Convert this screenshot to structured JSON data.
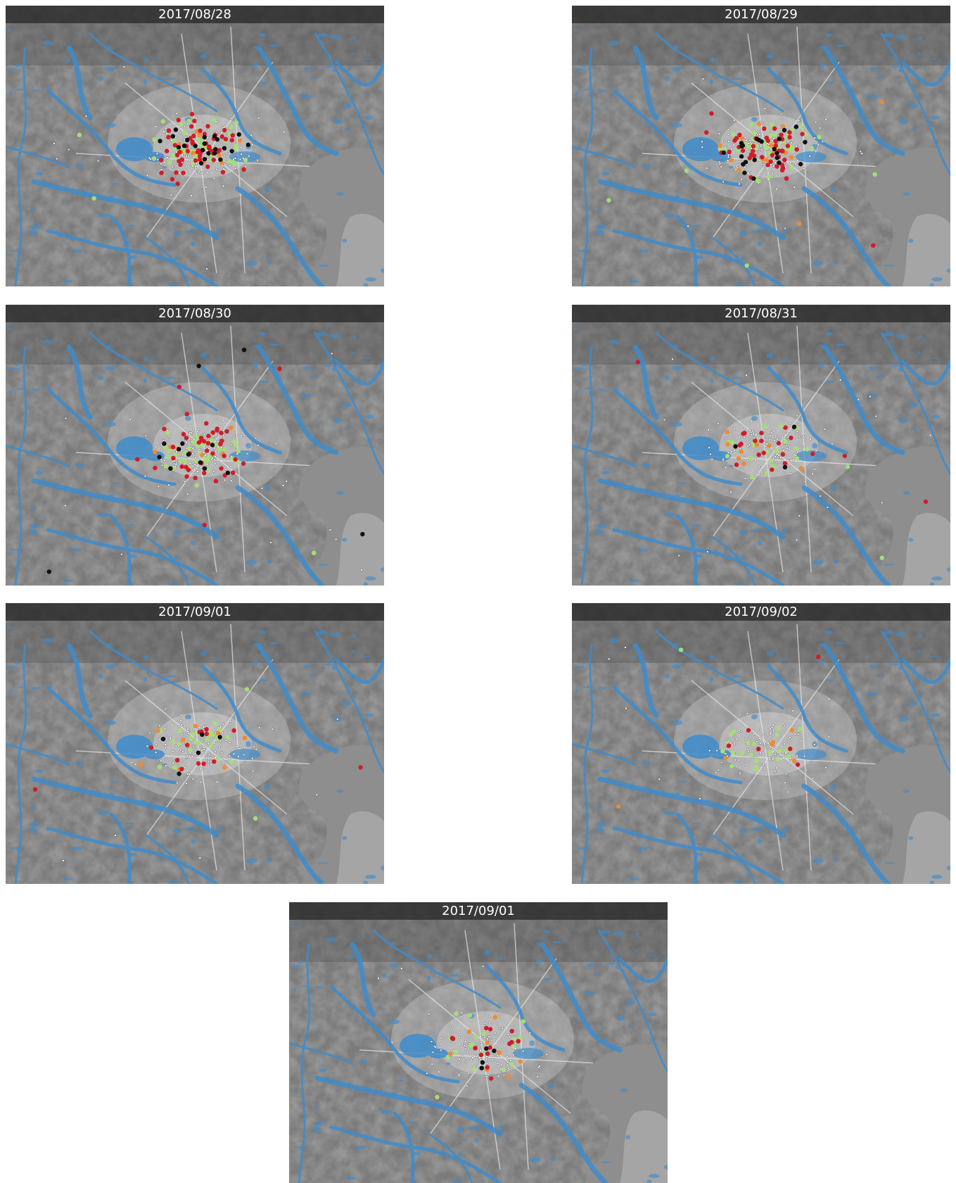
{
  "panels": [
    {
      "date": "2017/08/28",
      "counts": {
        "white": 170,
        "green": 45,
        "orange": 10,
        "red": 55,
        "black": 22
      }
    },
    {
      "date": "2017/08/29",
      "counts": {
        "white": 170,
        "green": 45,
        "orange": 14,
        "red": 45,
        "black": 22
      }
    },
    {
      "date": "2017/08/30",
      "counts": {
        "white": 160,
        "green": 40,
        "orange": 8,
        "red": 42,
        "black": 14
      }
    },
    {
      "date": "2017/08/31",
      "counts": {
        "white": 140,
        "green": 22,
        "orange": 8,
        "red": 20,
        "black": 3
      }
    },
    {
      "date": "2017/09/01",
      "counts": {
        "white": 130,
        "green": 25,
        "orange": 8,
        "red": 14,
        "black": 5
      }
    },
    {
      "date": "2017/09/02",
      "counts": {
        "white": 120,
        "green": 22,
        "orange": 6,
        "red": 6,
        "black": 0
      }
    },
    {
      "date": "2017/09/01",
      "counts": {
        "white": 120,
        "green": 18,
        "orange": 8,
        "red": 14,
        "black": 4
      }
    }
  ],
  "colors": {
    "flood": "#3f8ccc",
    "marker_white": "#ffffff",
    "marker_green": "#a6dd77",
    "marker_orange": "#f28a2e",
    "marker_red": "#d01c2a",
    "marker_black": "#111111"
  }
}
